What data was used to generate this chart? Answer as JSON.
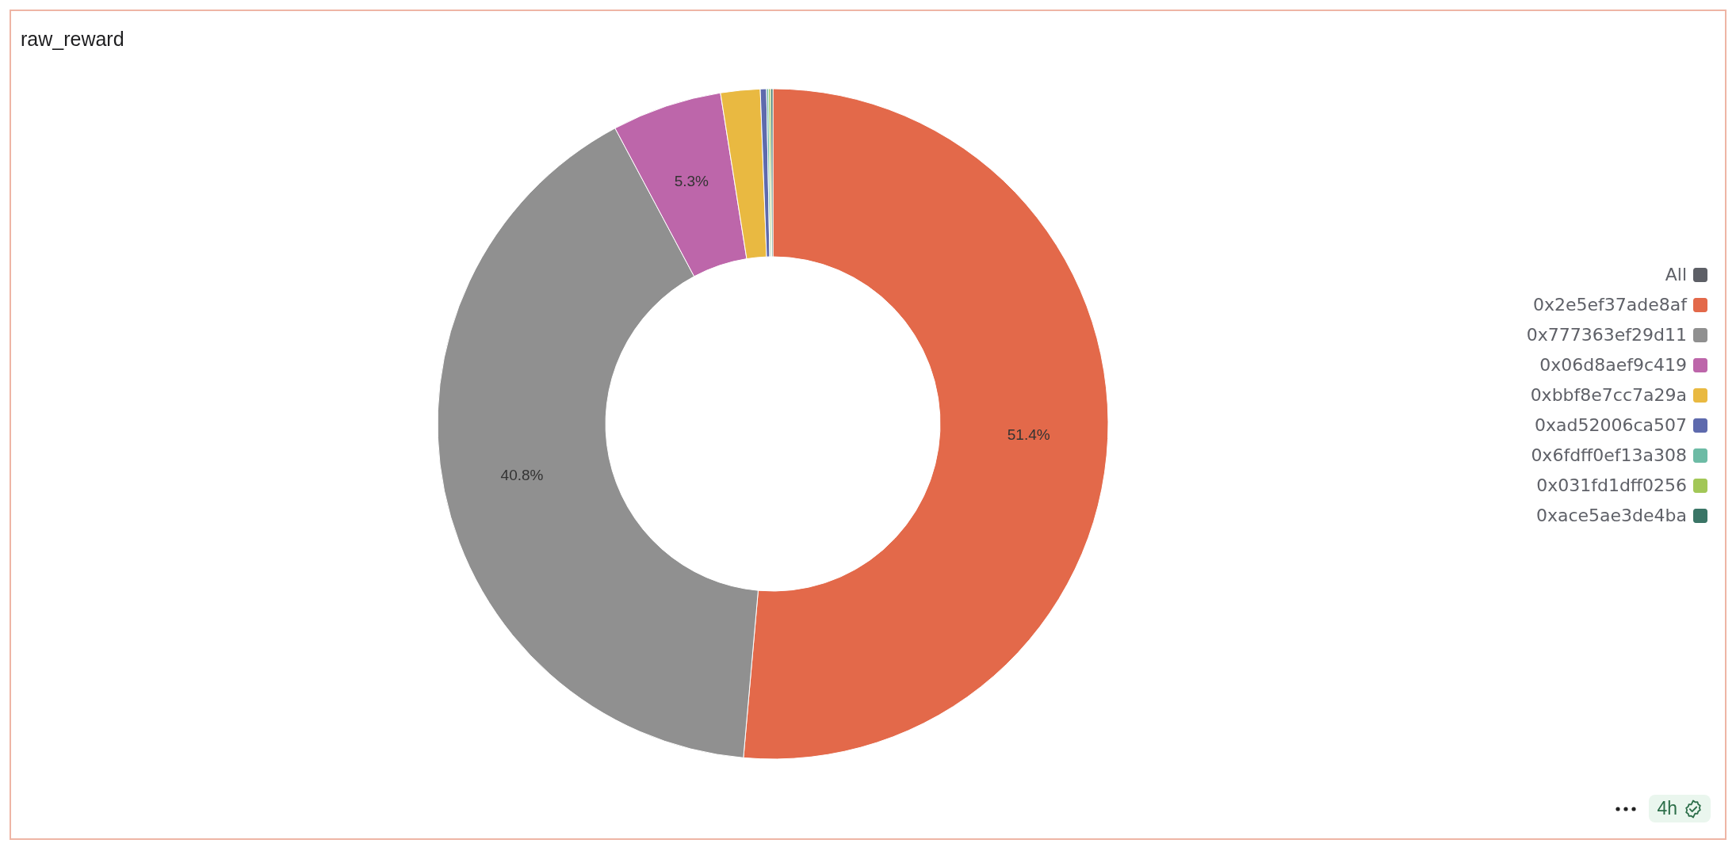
{
  "chart_data": {
    "type": "donut",
    "title": "raw_reward",
    "legend_title": "All",
    "categories": [
      "0x2e5ef37ade8af",
      "0x777363ef29d11",
      "0x06d8aef9c419",
      "0xbbf8e7cc7a29a",
      "0xad52006ca507",
      "0x6fdff0ef13a308",
      "0x031fd1dff0256",
      "0xace5ae3de4ba"
    ],
    "values": [
      51.4,
      40.8,
      5.3,
      1.9,
      0.3,
      0.1,
      0.1,
      0.1
    ],
    "colors": [
      "#e3694a",
      "#909090",
      "#bd66aa",
      "#e9b941",
      "#5e6aad",
      "#6dbba5",
      "#a2c757",
      "#3a7566"
    ],
    "value_labels": [
      "51.4%",
      "40.8%",
      "5.3%",
      null,
      null,
      null,
      null,
      null
    ],
    "legend": "right",
    "annotations": [
      "4h"
    ]
  }
}
